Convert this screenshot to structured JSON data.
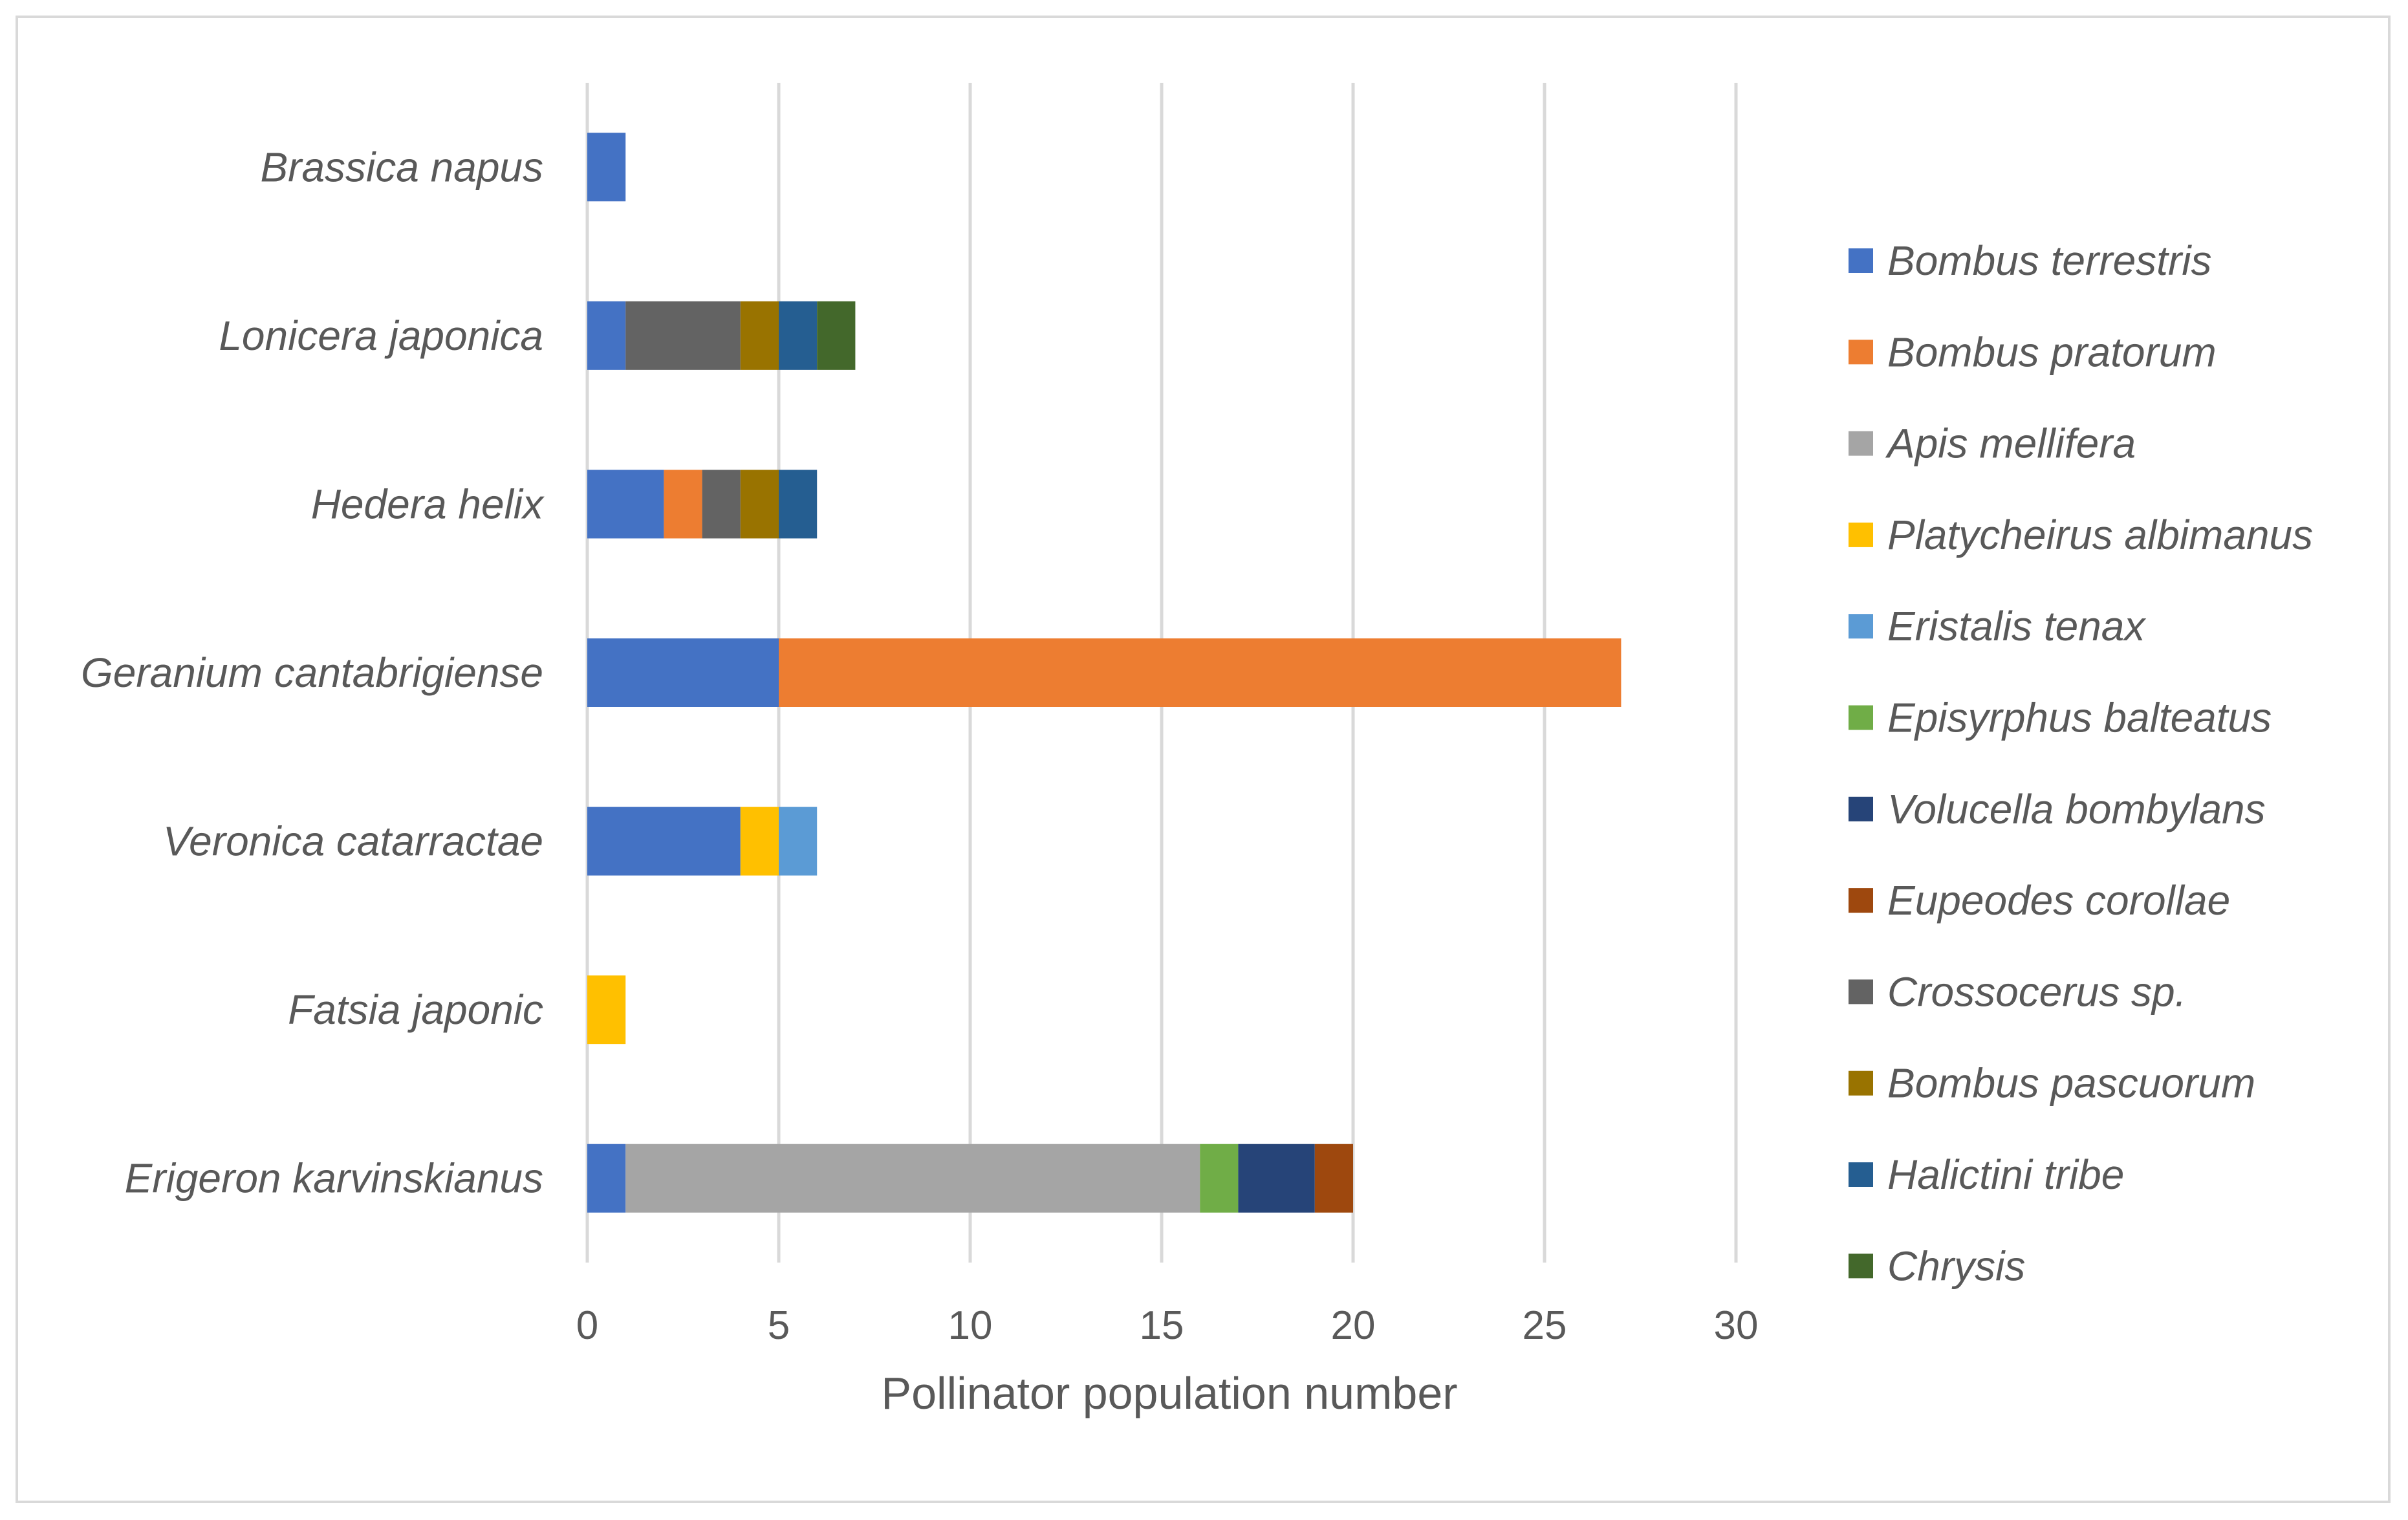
{
  "chart_data": {
    "type": "bar",
    "orientation": "horizontal",
    "stacked": true,
    "title": "",
    "xlabel": "Pollinator population number",
    "ylabel": "",
    "xlim": [
      0,
      30
    ],
    "x_ticks": [
      0,
      5,
      10,
      15,
      20,
      25,
      30
    ],
    "grid": true,
    "legend_position": "right",
    "categories": [
      "Erigeron karvinskianus",
      "Fatsia japonic",
      "Veronica catarractae",
      "Geranium cantabrigiense",
      "Hedera helix",
      "Lonicera japonica",
      "Brassica napus"
    ],
    "series": [
      {
        "name": "Bombus terrestris",
        "color": "#4472c4",
        "values": [
          1,
          0,
          4,
          5,
          2,
          1,
          1
        ]
      },
      {
        "name": "Bombus pratorum",
        "color": "#ed7d31",
        "values": [
          0,
          0,
          0,
          22,
          1,
          0,
          0
        ]
      },
      {
        "name": "Apis mellifera",
        "color": "#a5a5a5",
        "values": [
          15,
          0,
          0,
          0,
          0,
          0,
          0
        ]
      },
      {
        "name": "Platycheirus albimanus",
        "color": "#ffc000",
        "values": [
          0,
          1,
          1,
          0,
          0,
          0,
          0
        ]
      },
      {
        "name": "Eristalis tenax",
        "color": "#5b9bd5",
        "values": [
          0,
          0,
          1,
          0,
          0,
          0,
          0
        ]
      },
      {
        "name": "Episyrphus balteatus",
        "color": "#70ad47",
        "values": [
          1,
          0,
          0,
          0,
          0,
          0,
          0
        ]
      },
      {
        "name": "Volucella bombylans",
        "color": "#264478",
        "values": [
          2,
          0,
          0,
          0,
          0,
          0,
          0
        ]
      },
      {
        "name": "Eupeodes corollae",
        "color": "#9e480e",
        "values": [
          1,
          0,
          0,
          0,
          0,
          0,
          0
        ]
      },
      {
        "name": "Crossocerus sp.",
        "color": "#636363",
        "values": [
          0,
          0,
          0,
          0,
          1,
          3,
          0
        ]
      },
      {
        "name": "Bombus pascuorum",
        "color": "#997300",
        "values": [
          0,
          0,
          0,
          0,
          1,
          1,
          0
        ]
      },
      {
        "name": "Halictini tribe",
        "color": "#255e91",
        "values": [
          0,
          0,
          0,
          0,
          1,
          1,
          0
        ]
      },
      {
        "name": "Chrysis",
        "color": "#43682b",
        "values": [
          0,
          0,
          0,
          0,
          0,
          1,
          0
        ]
      }
    ]
  }
}
